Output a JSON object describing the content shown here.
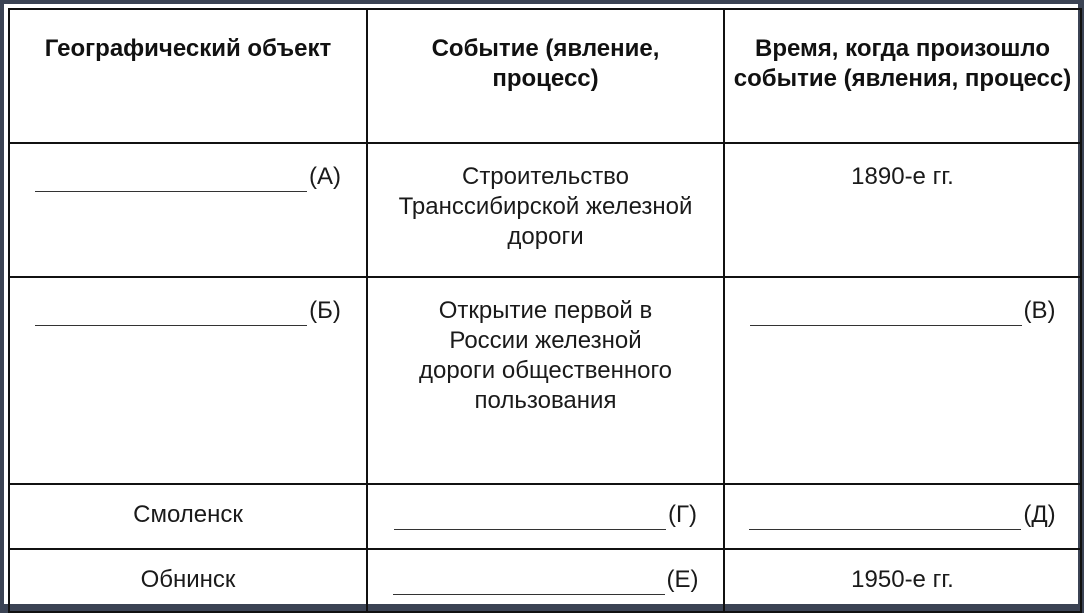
{
  "headers": [
    "Географический объект",
    "Событие (явление, процесс)",
    "Время, когда произошло событие (явления, процесс)"
  ],
  "rows": [
    {
      "object": {
        "blank": "(А)"
      },
      "event": {
        "text": "Строительство Транссибирской железной дороги"
      },
      "time": {
        "text": "1890-е гг."
      }
    },
    {
      "object": {
        "blank": "(Б)"
      },
      "event": {
        "text": "Открытие первой в России железной дороги общественного пользования"
      },
      "time": {
        "blank": "(В)"
      }
    },
    {
      "object": {
        "text": "Смоленск"
      },
      "event": {
        "blank": "(Г)"
      },
      "time": {
        "blank": "(Д)"
      }
    },
    {
      "object": {
        "text": "Обнинск"
      },
      "event": {
        "blank": "(Е)"
      },
      "time": {
        "text": "1950-е гг."
      }
    }
  ]
}
